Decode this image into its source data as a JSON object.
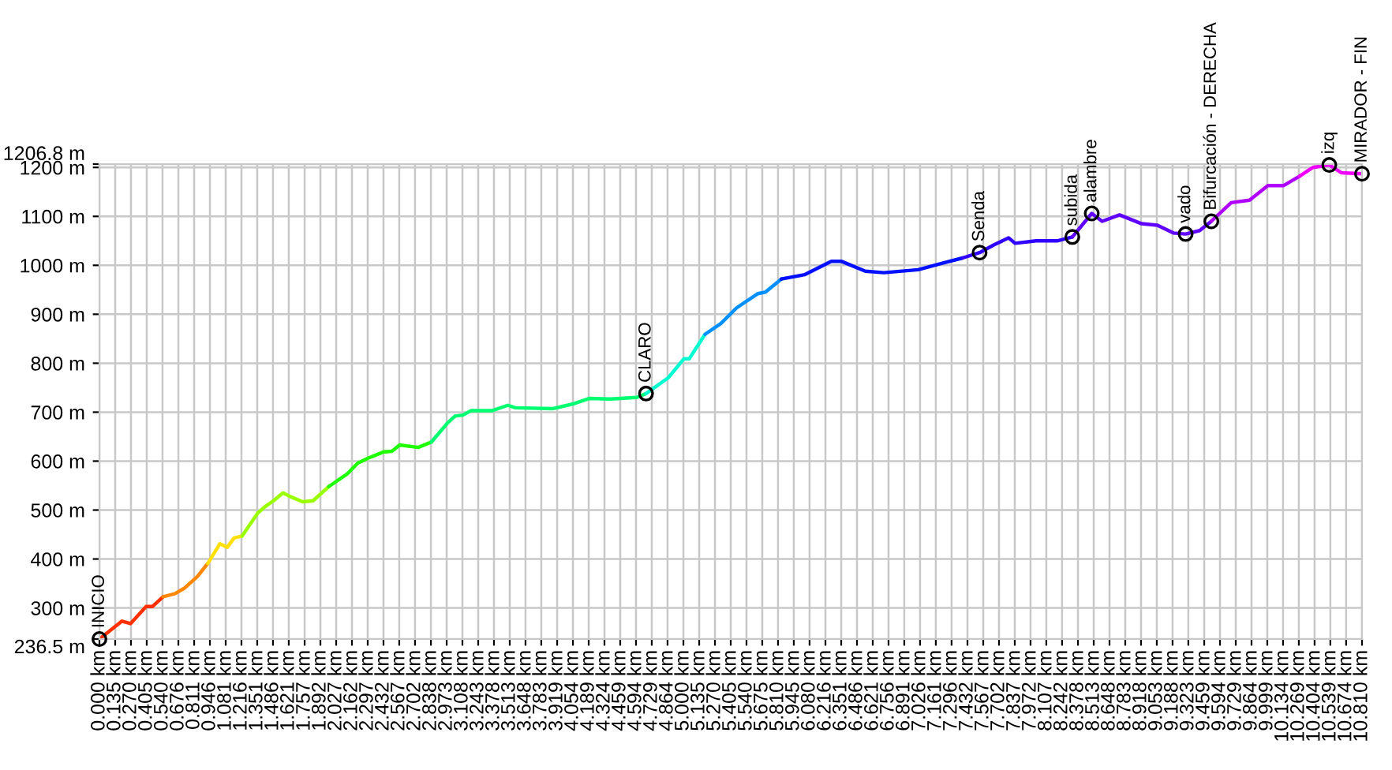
{
  "chart_data": {
    "type": "line",
    "series": [
      {
        "color": "#ff3000",
        "x": [
          0,
          0.193,
          0.266,
          0.4,
          0.455,
          0.545
        ],
        "values": [
          236.5,
          273,
          268,
          303,
          303,
          323
        ]
      },
      {
        "color": "#ff8800",
        "x": [
          0.545,
          0.645,
          0.725,
          0.838,
          0.928
        ],
        "values": [
          323,
          329,
          340,
          364,
          391
        ]
      },
      {
        "color": "#ffe000",
        "x": [
          0.928,
          1.031,
          1.095,
          1.153,
          1.221
        ],
        "values": [
          391,
          431,
          424,
          443,
          447
        ]
      },
      {
        "color": "#9aff00",
        "x": [
          1.221,
          1.356,
          1.423,
          1.49,
          1.572,
          1.649,
          1.739,
          1.829,
          1.964
        ],
        "values": [
          447,
          494,
          508,
          519,
          535,
          526,
          517,
          519,
          548
        ]
      },
      {
        "color": "#20ff00",
        "x": [
          1.964,
          2.122,
          2.212,
          2.3,
          2.436,
          2.504,
          2.571,
          2.73,
          2.842
        ],
        "values": [
          548,
          574,
          596,
          606,
          619,
          620,
          633,
          628,
          639
        ]
      },
      {
        "color": "#00ff70",
        "x": [
          2.842,
          2.977,
          3.045,
          3.112,
          3.18,
          3.36,
          3.496,
          3.563,
          3.878,
          3.968,
          4.058,
          4.193,
          4.374,
          4.6,
          4.68
        ],
        "values": [
          639,
          677,
          692,
          694,
          703,
          703,
          714,
          709,
          707,
          712,
          717,
          728,
          727,
          730,
          738
        ]
      },
      {
        "color": "#00ffd0",
        "x": [
          4.68,
          4.869,
          5.004,
          5.05,
          5.185
        ],
        "values": [
          738,
          770,
          809,
          809,
          859
        ]
      },
      {
        "color": "#0090ff",
        "x": [
          5.185,
          5.32,
          5.455,
          5.635,
          5.7,
          5.838
        ],
        "values": [
          859,
          881,
          913,
          942,
          945,
          972
        ]
      },
      {
        "color": "#0010ff",
        "x": [
          5.838,
          6.04,
          6.266,
          6.355,
          6.558,
          6.716,
          7.01,
          7.21,
          7.39
        ],
        "values": [
          972,
          981,
          1008,
          1008,
          988,
          985,
          991,
          1004,
          1015
        ]
      },
      {
        "color": "#3000ff",
        "x": [
          7.39,
          7.536,
          7.66,
          7.784,
          7.84,
          8.02,
          8.2,
          8.33
        ],
        "values": [
          1015,
          1026,
          1042,
          1056,
          1045,
          1050,
          1050,
          1058
        ]
      },
      {
        "color": "#6000ff",
        "x": [
          8.33,
          8.496,
          8.585,
          8.734,
          8.923,
          9.058,
          9.195,
          9.3,
          9.42,
          9.52
        ],
        "values": [
          1058,
          1106,
          1090,
          1103,
          1085,
          1082,
          1066,
          1064,
          1071,
          1090
        ]
      },
      {
        "color": "#b000ff",
        "x": [
          9.52,
          9.69,
          9.847,
          10.004,
          10.14,
          10.275
        ],
        "values": [
          1090,
          1128,
          1133,
          1163,
          1163,
          1182
        ]
      },
      {
        "color": "#f000ff",
        "x": [
          10.275,
          10.39,
          10.53,
          10.635,
          10.81
        ],
        "values": [
          1182,
          1200,
          1205,
          1189,
          1187
        ]
      }
    ],
    "annotations": [
      {
        "text": "INICIO",
        "x": 0,
        "y": 236.5
      },
      {
        "text": "CLARO",
        "x": 4.68,
        "y": 738
      },
      {
        "text": "Senda",
        "x": 7.536,
        "y": 1026
      },
      {
        "text": "subida",
        "x": 8.33,
        "y": 1058
      },
      {
        "text": "alambre",
        "x": 8.496,
        "y": 1106
      },
      {
        "text": "vado",
        "x": 9.3,
        "y": 1064
      },
      {
        "text": "Bifurcación - DERECHA",
        "x": 9.52,
        "y": 1090
      },
      {
        "text": "izq",
        "x": 10.53,
        "y": 1205
      },
      {
        "text": "MIRADOR - FIN",
        "x": 10.81,
        "y": 1187
      }
    ],
    "xlim": [
      0,
      10.81
    ],
    "xticks": [
      {
        "value": 0,
        "label": "0.000 km"
      },
      {
        "value": 0.135,
        "label": "0.135 km"
      },
      {
        "value": 0.27,
        "label": "0.270 km"
      },
      {
        "value": 0.405,
        "label": "0.405 km"
      },
      {
        "value": 0.54,
        "label": "0.540 km"
      },
      {
        "value": 0.676,
        "label": "0.676 km"
      },
      {
        "value": 0.811,
        "label": "0.811 km"
      },
      {
        "value": 0.946,
        "label": "0.946 km"
      },
      {
        "value": 1.081,
        "label": "1.081 km"
      },
      {
        "value": 1.216,
        "label": "1.216 km"
      },
      {
        "value": 1.351,
        "label": "1.351 km"
      },
      {
        "value": 1.486,
        "label": "1.486 km"
      },
      {
        "value": 1.621,
        "label": "1.621 km"
      },
      {
        "value": 1.757,
        "label": "1.757 km"
      },
      {
        "value": 1.892,
        "label": "1.892 km"
      },
      {
        "value": 2.027,
        "label": "2.027 km"
      },
      {
        "value": 2.162,
        "label": "2.162 km"
      },
      {
        "value": 2.297,
        "label": "2.297 km"
      },
      {
        "value": 2.432,
        "label": "2.432 km"
      },
      {
        "value": 2.567,
        "label": "2.567 km"
      },
      {
        "value": 2.702,
        "label": "2.702 km"
      },
      {
        "value": 2.838,
        "label": "2.838 km"
      },
      {
        "value": 2.973,
        "label": "2.973 km"
      },
      {
        "value": 3.108,
        "label": "3.108 km"
      },
      {
        "value": 3.243,
        "label": "3.243 km"
      },
      {
        "value": 3.378,
        "label": "3.378 km"
      },
      {
        "value": 3.513,
        "label": "3.513 km"
      },
      {
        "value": 3.648,
        "label": "3.648 km"
      },
      {
        "value": 3.783,
        "label": "3.783 km"
      },
      {
        "value": 3.919,
        "label": "3.919 km"
      },
      {
        "value": 4.054,
        "label": "4.054 km"
      },
      {
        "value": 4.189,
        "label": "4.189 km"
      },
      {
        "value": 4.324,
        "label": "4.324 km"
      },
      {
        "value": 4.459,
        "label": "4.459 km"
      },
      {
        "value": 4.594,
        "label": "4.594 km"
      },
      {
        "value": 4.729,
        "label": "4.729 km"
      },
      {
        "value": 4.864,
        "label": "4.864 km"
      },
      {
        "value": 5.0,
        "label": "5.000 km"
      },
      {
        "value": 5.135,
        "label": "5.135 km"
      },
      {
        "value": 5.27,
        "label": "5.270 km"
      },
      {
        "value": 5.405,
        "label": "5.405 km"
      },
      {
        "value": 5.54,
        "label": "5.540 km"
      },
      {
        "value": 5.675,
        "label": "5.675 km"
      },
      {
        "value": 5.81,
        "label": "5.810 km"
      },
      {
        "value": 5.945,
        "label": "5.945 km"
      },
      {
        "value": 6.08,
        "label": "6.080 km"
      },
      {
        "value": 6.216,
        "label": "6.216 km"
      },
      {
        "value": 6.351,
        "label": "6.351 km"
      },
      {
        "value": 6.486,
        "label": "6.486 km"
      },
      {
        "value": 6.621,
        "label": "6.621 km"
      },
      {
        "value": 6.756,
        "label": "6.756 km"
      },
      {
        "value": 6.891,
        "label": "6.891 km"
      },
      {
        "value": 7.026,
        "label": "7.026 km"
      },
      {
        "value": 7.161,
        "label": "7.161 km"
      },
      {
        "value": 7.296,
        "label": "7.296 km"
      },
      {
        "value": 7.432,
        "label": "7.432 km"
      },
      {
        "value": 7.567,
        "label": "7.567 km"
      },
      {
        "value": 7.702,
        "label": "7.702 km"
      },
      {
        "value": 7.837,
        "label": "7.837 km"
      },
      {
        "value": 7.972,
        "label": "7.972 km"
      },
      {
        "value": 8.107,
        "label": "8.107 km"
      },
      {
        "value": 8.242,
        "label": "8.242 km"
      },
      {
        "value": 8.378,
        "label": "8.378 km"
      },
      {
        "value": 8.513,
        "label": "8.513 km"
      },
      {
        "value": 8.648,
        "label": "8.648 km"
      },
      {
        "value": 8.783,
        "label": "8.783 km"
      },
      {
        "value": 8.918,
        "label": "8.918 km"
      },
      {
        "value": 9.053,
        "label": "9.053 km"
      },
      {
        "value": 9.188,
        "label": "9.188 km"
      },
      {
        "value": 9.323,
        "label": "9.323 km"
      },
      {
        "value": 9.459,
        "label": "9.459 km"
      },
      {
        "value": 9.594,
        "label": "9.594 km"
      },
      {
        "value": 9.729,
        "label": "9.729 km"
      },
      {
        "value": 9.864,
        "label": "9.864 km"
      },
      {
        "value": 9.999,
        "label": "9.999 km"
      },
      {
        "value": 10.134,
        "label": "10.134 km"
      },
      {
        "value": 10.269,
        "label": "10.269 km"
      },
      {
        "value": 10.404,
        "label": "10.404 km"
      },
      {
        "value": 10.539,
        "label": "10.539 km"
      },
      {
        "value": 10.674,
        "label": "10.674 km"
      },
      {
        "value": 10.81,
        "label": "10.810 km"
      }
    ],
    "ylim": [
      236.5,
      1206.8
    ],
    "yticks": [
      {
        "value": 236.5,
        "label": "236.5 m"
      },
      {
        "value": 300,
        "label": "300 m"
      },
      {
        "value": 400,
        "label": "400 m"
      },
      {
        "value": 500,
        "label": "500 m"
      },
      {
        "value": 600,
        "label": "600 m"
      },
      {
        "value": 700,
        "label": "700 m"
      },
      {
        "value": 800,
        "label": "800 m"
      },
      {
        "value": 900,
        "label": "900 m"
      },
      {
        "value": 1000,
        "label": "1000 m"
      },
      {
        "value": 1100,
        "label": "1100 m"
      },
      {
        "value": 1200,
        "label": "1200 m"
      },
      {
        "value": 1206.8,
        "label": "1206.8 m"
      }
    ],
    "grid": true,
    "marker": "none",
    "line_style": "solid"
  }
}
